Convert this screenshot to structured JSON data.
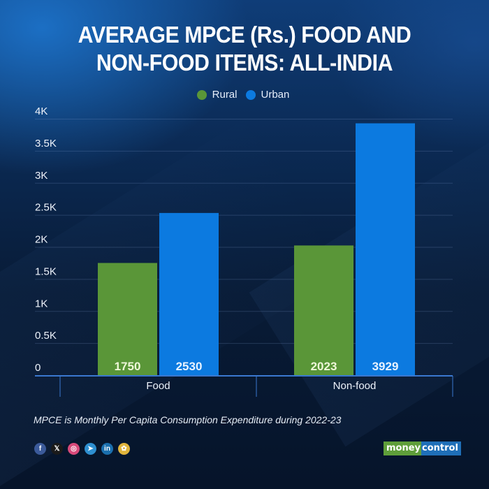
{
  "title_lines": [
    "AVERAGE MPCE (Rs.) FOOD AND",
    "NON-FOOD ITEMS: ALL-INDIA"
  ],
  "caption": "MPCE is Monthly Per Capita Consumption Expenditure during 2022-23",
  "social_icons": [
    {
      "name": "facebook-icon",
      "glyph": "f",
      "color": "#3b5a9a"
    },
    {
      "name": "x-icon",
      "glyph": "𝕏",
      "color": "#1a1a1a"
    },
    {
      "name": "instagram-icon",
      "glyph": "◎",
      "color": "#d8497a"
    },
    {
      "name": "telegram-icon",
      "glyph": "➤",
      "color": "#2e8fd0"
    },
    {
      "name": "linkedin-icon",
      "glyph": "in",
      "color": "#1a6fae"
    },
    {
      "name": "snapchat-icon",
      "glyph": "✿",
      "color": "#e0b43c"
    }
  ],
  "logo": {
    "part1": "money",
    "part2": "control"
  },
  "colors": {
    "rural": "#5a9638",
    "urban": "#0c7ae0",
    "axis": "#3a78d0"
  },
  "chart_data": {
    "type": "bar",
    "title": "AVERAGE MPCE (Rs.) FOOD AND NON-FOOD ITEMS: ALL-INDIA",
    "xlabel": "",
    "ylabel": "",
    "categories": [
      "Food",
      "Non-food"
    ],
    "series": [
      {
        "name": "Rural",
        "values": [
          1750,
          2023
        ]
      },
      {
        "name": "Urban",
        "values": [
          2530,
          3929
        ]
      }
    ],
    "ylim": [
      0,
      4000
    ],
    "yticks": [
      0,
      500,
      1000,
      1500,
      2000,
      2500,
      3000,
      3500,
      4000
    ],
    "ytick_labels": [
      "0",
      "0.5K",
      "1K",
      "1.5K",
      "2K",
      "2.5K",
      "3K",
      "3.5K",
      "4K"
    ],
    "data_labels": true,
    "grid": true,
    "legend": "top-center",
    "note": "MPCE is Monthly Per Capita Consumption Expenditure during 2022-23"
  }
}
